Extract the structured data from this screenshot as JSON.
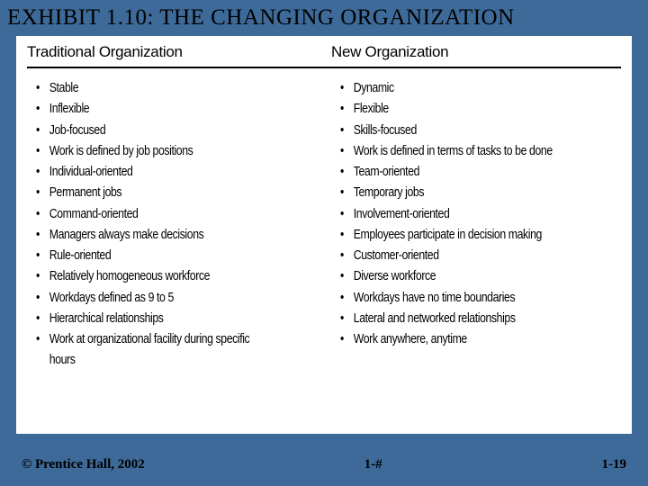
{
  "title": "EXHIBIT 1.10: THE CHANGING ORGANIZATION",
  "columns": {
    "left": {
      "heading": "Traditional Organization",
      "items": [
        "Stable",
        "Inflexible",
        "Job-focused",
        "Work is defined by job positions",
        "Individual-oriented",
        "Permanent jobs",
        "Command-oriented",
        "Managers always make decisions",
        "Rule-oriented",
        "Relatively homogeneous workforce",
        "Workdays defined as 9 to 5",
        "Hierarchical relationships",
        "Work at organizational facility during specific hours"
      ]
    },
    "right": {
      "heading": "New Organization",
      "items": [
        "Dynamic",
        "Flexible",
        "Skills-focused",
        "Work is defined in terms of tasks to be done",
        "Team-oriented",
        "Temporary jobs",
        "Involvement-oriented",
        "Employees participate in decision making",
        "Customer-oriented",
        "Diverse workforce",
        "Workdays have no time boundaries",
        "Lateral and networked relationships",
        "Work anywhere, anytime"
      ]
    }
  },
  "footer": {
    "copyright": "© Prentice Hall, 2002",
    "pager_mid": "1-#",
    "pager_right": "1-19"
  },
  "colors": {
    "background": "#3d6a99",
    "panel": "#ffffff",
    "text": "#000000",
    "rule": "#000000"
  }
}
